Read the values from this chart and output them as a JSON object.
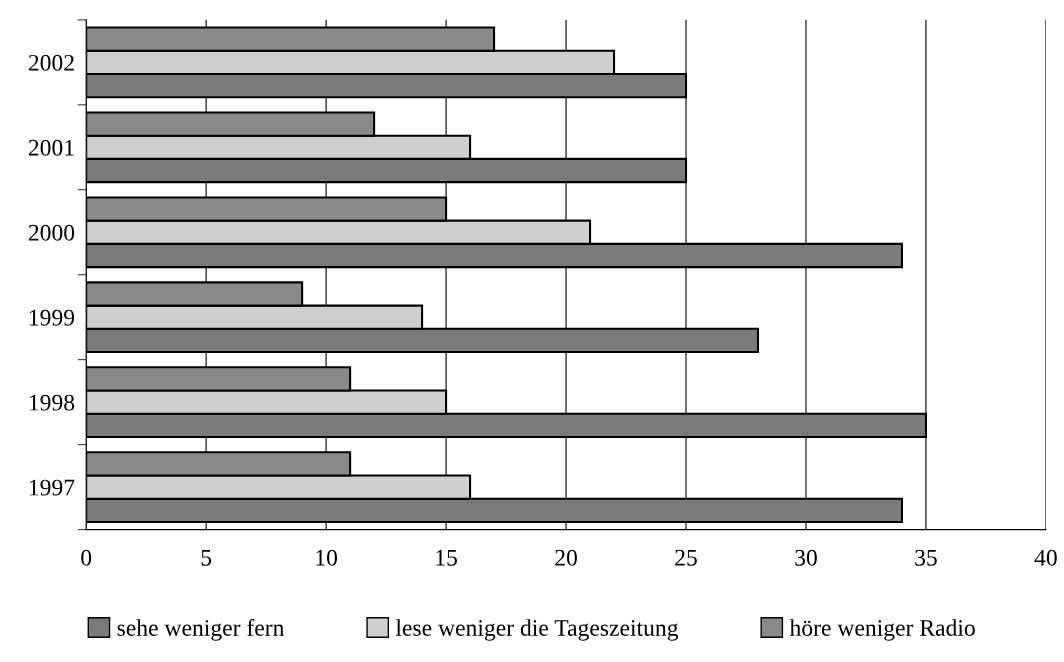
{
  "chart_data": {
    "type": "bar",
    "orientation": "horizontal",
    "categories": [
      "2002",
      "2001",
      "2000",
      "1999",
      "1998",
      "1997"
    ],
    "series": [
      {
        "name": "sehe weniger fern",
        "color": "#7a7a7a",
        "values": [
          25,
          25,
          34,
          28,
          35,
          34
        ]
      },
      {
        "name": "lese weniger die Tageszeitung",
        "color": "#cfcfcf",
        "values": [
          22,
          16,
          21,
          14,
          15,
          16
        ]
      },
      {
        "name": "höre weniger Radio",
        "color": "#8a8a8a",
        "values": [
          17,
          12,
          15,
          9,
          11,
          11
        ]
      }
    ],
    "xlim": [
      0,
      40
    ],
    "xticks": [
      0,
      5,
      10,
      15,
      20,
      25,
      30,
      35,
      40
    ],
    "grid": "x",
    "legend": "bottom"
  }
}
